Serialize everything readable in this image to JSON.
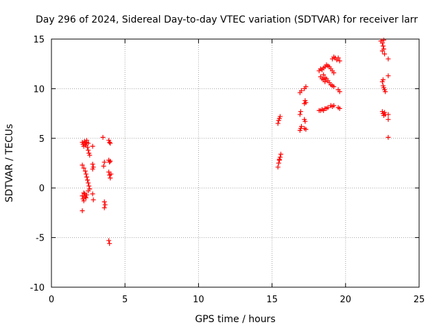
{
  "chart_data": {
    "type": "scatter",
    "title": "Day 296 of 2024, Sidereal Day-to-day VTEC variation (SDTVAR) for receiver larr",
    "xlabel": "GPS time / hours",
    "ylabel": "SDTVAR / TECUs",
    "xlim": [
      0,
      25
    ],
    "ylim": [
      -10,
      15
    ],
    "xticks": [
      "0",
      "5",
      "10",
      "15",
      "20",
      "25"
    ],
    "yticks": [
      "-10",
      "-5",
      "0",
      "5",
      "10",
      "15"
    ],
    "grid": true,
    "marker": "+",
    "color": "#ff0000",
    "series": [
      {
        "name": "SDTVAR",
        "points": [
          [
            2.1,
            4.6
          ],
          [
            2.15,
            4.4
          ],
          [
            2.2,
            4.2
          ],
          [
            2.25,
            4.7
          ],
          [
            2.3,
            4.5
          ],
          [
            2.35,
            4.3
          ],
          [
            2.4,
            4.6
          ],
          [
            2.45,
            4.1
          ],
          [
            2.5,
            3.8
          ],
          [
            2.55,
            3.5
          ],
          [
            2.6,
            3.3
          ],
          [
            2.4,
            4.8
          ],
          [
            2.5,
            4.5
          ],
          [
            2.1,
            2.3
          ],
          [
            2.2,
            2.0
          ],
          [
            2.3,
            1.7
          ],
          [
            2.35,
            1.4
          ],
          [
            2.4,
            1.1
          ],
          [
            2.45,
            0.8
          ],
          [
            2.5,
            0.5
          ],
          [
            2.55,
            0.2
          ],
          [
            2.6,
            -0.1
          ],
          [
            2.5,
            -0.3
          ],
          [
            2.1,
            -0.8
          ],
          [
            2.15,
            -1.1
          ],
          [
            2.2,
            -1.3
          ],
          [
            2.25,
            -0.6
          ],
          [
            2.3,
            -0.9
          ],
          [
            2.35,
            -1.0
          ],
          [
            2.4,
            -0.7
          ],
          [
            2.2,
            -0.5
          ],
          [
            2.1,
            -2.3
          ],
          [
            2.8,
            4.2
          ],
          [
            2.8,
            2.4
          ],
          [
            2.85,
            2.1
          ],
          [
            2.8,
            1.9
          ],
          [
            2.8,
            -0.6
          ],
          [
            2.85,
            -1.2
          ],
          [
            3.5,
            5.1
          ],
          [
            3.6,
            2.6
          ],
          [
            3.55,
            2.2
          ],
          [
            3.6,
            -1.4
          ],
          [
            3.65,
            -1.7
          ],
          [
            3.6,
            -2.0
          ],
          [
            3.9,
            4.8
          ],
          [
            3.95,
            4.6
          ],
          [
            4.0,
            4.5
          ],
          [
            3.9,
            2.8
          ],
          [
            3.95,
            2.6
          ],
          [
            4.0,
            2.7
          ],
          [
            3.9,
            1.6
          ],
          [
            3.95,
            1.3
          ],
          [
            4.0,
            1.0
          ],
          [
            4.05,
            1.4
          ],
          [
            3.9,
            -5.3
          ],
          [
            3.95,
            -5.6
          ],
          [
            15.4,
            6.5
          ],
          [
            15.45,
            6.8
          ],
          [
            15.5,
            7.0
          ],
          [
            15.55,
            7.2
          ],
          [
            15.4,
            2.1
          ],
          [
            15.45,
            2.5
          ],
          [
            15.5,
            2.8
          ],
          [
            15.55,
            3.1
          ],
          [
            15.6,
            3.4
          ],
          [
            15.5,
            2.9
          ],
          [
            16.9,
            9.6
          ],
          [
            17.0,
            9.8
          ],
          [
            17.2,
            10.0
          ],
          [
            17.3,
            10.2
          ],
          [
            17.2,
            8.5
          ],
          [
            17.25,
            8.8
          ],
          [
            17.3,
            8.6
          ],
          [
            16.9,
            7.4
          ],
          [
            16.95,
            7.7
          ],
          [
            17.2,
            6.9
          ],
          [
            17.25,
            6.7
          ],
          [
            17.0,
            6.2
          ],
          [
            16.95,
            6.0
          ],
          [
            16.9,
            5.8
          ],
          [
            17.2,
            6.0
          ],
          [
            17.3,
            5.9
          ],
          [
            18.2,
            11.8
          ],
          [
            18.3,
            12.0
          ],
          [
            18.4,
            11.9
          ],
          [
            18.5,
            12.1
          ],
          [
            18.6,
            12.2
          ],
          [
            18.7,
            12.4
          ],
          [
            18.8,
            12.3
          ],
          [
            18.9,
            12.2
          ],
          [
            19.0,
            12.0
          ],
          [
            19.1,
            11.8
          ],
          [
            19.2,
            11.6
          ],
          [
            18.3,
            11.2
          ],
          [
            18.4,
            11.0
          ],
          [
            18.5,
            10.9
          ],
          [
            18.6,
            11.1
          ],
          [
            18.7,
            11.0
          ],
          [
            18.8,
            10.8
          ],
          [
            18.9,
            10.6
          ],
          [
            19.0,
            10.4
          ],
          [
            19.1,
            10.3
          ],
          [
            19.2,
            10.2
          ],
          [
            18.5,
            11.4
          ],
          [
            18.6,
            10.7
          ],
          [
            19.1,
            13.0
          ],
          [
            19.2,
            13.2
          ],
          [
            19.3,
            13.1
          ],
          [
            19.4,
            12.9
          ],
          [
            19.5,
            13.1
          ],
          [
            19.6,
            12.8
          ],
          [
            19.5,
            9.9
          ],
          [
            19.6,
            9.7
          ],
          [
            18.2,
            7.8
          ],
          [
            18.3,
            7.8
          ],
          [
            18.4,
            7.9
          ],
          [
            18.5,
            7.8
          ],
          [
            18.6,
            8.0
          ],
          [
            18.7,
            8.0
          ],
          [
            18.8,
            8.1
          ],
          [
            19.0,
            8.3
          ],
          [
            19.1,
            8.2
          ],
          [
            19.2,
            8.3
          ],
          [
            19.5,
            8.1
          ],
          [
            19.6,
            8.0
          ],
          [
            22.4,
            14.8
          ],
          [
            22.5,
            14.6
          ],
          [
            22.55,
            14.3
          ],
          [
            22.6,
            14.0
          ],
          [
            22.5,
            13.8
          ],
          [
            22.65,
            13.5
          ],
          [
            22.6,
            14.9
          ],
          [
            22.5,
            10.7
          ],
          [
            22.55,
            10.3
          ],
          [
            22.6,
            10.1
          ],
          [
            22.65,
            9.9
          ],
          [
            22.7,
            9.7
          ],
          [
            22.55,
            10.9
          ],
          [
            22.5,
            7.7
          ],
          [
            22.55,
            7.5
          ],
          [
            22.6,
            7.3
          ],
          [
            22.65,
            7.6
          ],
          [
            22.7,
            7.4
          ],
          [
            22.9,
            13.0
          ],
          [
            22.9,
            11.3
          ],
          [
            22.9,
            7.4
          ],
          [
            22.9,
            6.9
          ],
          [
            22.9,
            5.1
          ]
        ]
      }
    ]
  }
}
